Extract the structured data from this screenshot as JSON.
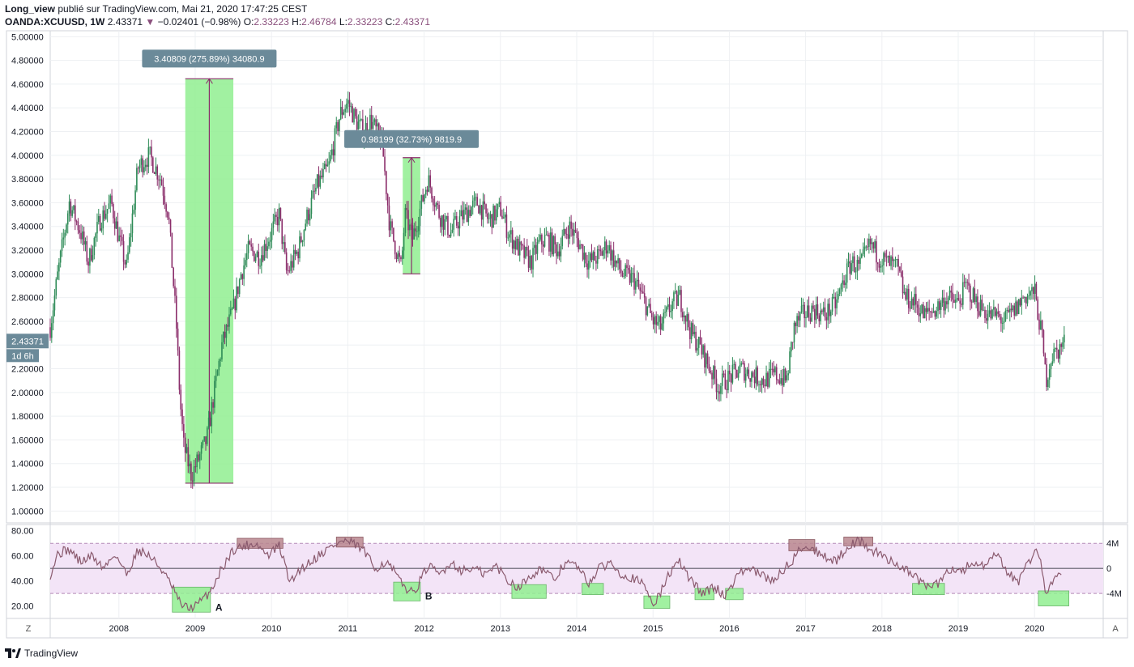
{
  "header": {
    "publisher": "Long_view",
    "published_text": "publié sur TradingView.com, Mai 21, 2020 17:47:25 CEST",
    "symbol": "OANDA:XCUUSD, 1W",
    "last": "2.43371",
    "change": "−0.02401 (−0.98%)",
    "o_label": "O:",
    "o": "2.33223",
    "h_label": "H:",
    "h": "2.46784",
    "l_label": "L:",
    "l": "2.33223",
    "c_label": "C:",
    "c": "2.43371"
  },
  "price_tag": {
    "price": "2.43371",
    "countdown": "1d 6h"
  },
  "measures": [
    {
      "label": "3.40809 (275.89%) 34080.9",
      "x0": 2008.87,
      "x1": 2009.5,
      "y0": 1.235,
      "y1": 4.645
    },
    {
      "label": "0.98199 (32.73%) 9819.9",
      "x0": 2011.72,
      "x1": 2011.95,
      "y0": 3.0,
      "y1": 3.98
    }
  ],
  "rsi_boxes": [
    {
      "x0": 2008.7,
      "x1": 2009.2,
      "y0": 15,
      "y1": 35,
      "color": "#90ee90",
      "label": "A"
    },
    {
      "x0": 2009.55,
      "x1": 2010.15,
      "y0": 66,
      "y1": 74,
      "color": "#b8868e",
      "label": ""
    },
    {
      "x0": 2010.85,
      "x1": 2011.2,
      "y0": 67,
      "y1": 75,
      "color": "#b8868e",
      "label": ""
    },
    {
      "x0": 2011.6,
      "x1": 2011.95,
      "y0": 24,
      "y1": 39,
      "color": "#90ee90",
      "label": "B"
    },
    {
      "x0": 2013.15,
      "x1": 2013.6,
      "y0": 26,
      "y1": 37,
      "color": "#90ee90",
      "label": ""
    },
    {
      "x0": 2014.07,
      "x1": 2014.35,
      "y0": 29,
      "y1": 38,
      "color": "#90ee90",
      "label": ""
    },
    {
      "x0": 2014.88,
      "x1": 2015.22,
      "y0": 18,
      "y1": 28,
      "color": "#90ee90",
      "label": ""
    },
    {
      "x0": 2015.55,
      "x1": 2015.8,
      "y0": 25,
      "y1": 34,
      "color": "#90ee90",
      "label": ""
    },
    {
      "x0": 2015.95,
      "x1": 2016.18,
      "y0": 25,
      "y1": 34,
      "color": "#90ee90",
      "label": ""
    },
    {
      "x0": 2016.78,
      "x1": 2017.12,
      "y0": 64,
      "y1": 73,
      "color": "#b8868e",
      "label": ""
    },
    {
      "x0": 2017.5,
      "x1": 2017.88,
      "y0": 68,
      "y1": 75,
      "color": "#b8868e",
      "label": ""
    },
    {
      "x0": 2018.4,
      "x1": 2018.82,
      "y0": 29,
      "y1": 38,
      "color": "#90ee90",
      "label": ""
    },
    {
      "x0": 2020.05,
      "x1": 2020.45,
      "y0": 20,
      "y1": 32,
      "color": "#90ee90",
      "label": ""
    }
  ],
  "chart_data": [
    {
      "type": "line",
      "title": "",
      "ylim": [
        0.9,
        5.05
      ],
      "xlim": [
        2007.1,
        2020.9
      ],
      "y_ticks": [
        "5.00000",
        "4.80000",
        "4.60000",
        "4.40000",
        "4.20000",
        "4.00000",
        "3.80000",
        "3.60000",
        "3.40000",
        "3.20000",
        "3.00000",
        "2.80000",
        "2.60000",
        "2.40000",
        "2.20000",
        "2.00000",
        "1.80000",
        "1.60000",
        "1.40000",
        "1.20000",
        "1.00000"
      ],
      "x_ticks": [
        "2008",
        "2009",
        "2010",
        "2011",
        "2012",
        "2013",
        "2014",
        "2015",
        "2016",
        "2017",
        "2018",
        "2019",
        "2020"
      ],
      "series": [
        {
          "x": [
            2007.1,
            2007.2,
            2007.35,
            2007.5,
            2007.6,
            2007.75,
            2007.9,
            2008.0,
            2008.1,
            2008.25,
            2008.4,
            2008.55,
            2008.65,
            2008.75,
            2008.8,
            2008.85,
            2008.95,
            2009.05,
            2009.15,
            2009.25,
            2009.35,
            2009.5,
            2009.6,
            2009.7,
            2009.85,
            2010.0,
            2010.1,
            2010.2,
            2010.35,
            2010.45,
            2010.6,
            2010.75,
            2010.9,
            2011.0,
            2011.1,
            2011.2,
            2011.3,
            2011.45,
            2011.55,
            2011.7,
            2011.75,
            2011.85,
            2011.95,
            2012.05,
            2012.2,
            2012.35,
            2012.45,
            2012.6,
            2012.7,
            2012.85,
            2013.0,
            2013.1,
            2013.25,
            2013.4,
            2013.5,
            2013.6,
            2013.75,
            2013.9,
            2014.0,
            2014.15,
            2014.3,
            2014.4,
            2014.5,
            2014.6,
            2014.75,
            2014.9,
            2015.0,
            2015.1,
            2015.25,
            2015.35,
            2015.5,
            2015.6,
            2015.75,
            2015.85,
            2015.95,
            2016.05,
            2016.15,
            2016.3,
            2016.45,
            2016.6,
            2016.75,
            2016.85,
            2016.95,
            2017.1,
            2017.25,
            2017.4,
            2017.5,
            2017.6,
            2017.7,
            2017.85,
            2017.95,
            2018.05,
            2018.2,
            2018.3,
            2018.45,
            2018.55,
            2018.7,
            2018.85,
            2019.0,
            2019.1,
            2019.25,
            2019.4,
            2019.5,
            2019.6,
            2019.75,
            2019.85,
            2020.0,
            2020.1,
            2020.15,
            2020.22,
            2020.3,
            2020.4
          ],
          "y": [
            2.55,
            3.0,
            3.6,
            3.35,
            3.1,
            3.45,
            3.6,
            3.3,
            3.05,
            3.9,
            4.0,
            3.8,
            3.5,
            2.6,
            1.95,
            1.55,
            1.3,
            1.45,
            1.6,
            2.0,
            2.4,
            2.7,
            3.0,
            3.2,
            3.15,
            3.35,
            3.5,
            3.0,
            3.2,
            3.45,
            3.75,
            3.9,
            4.35,
            4.45,
            4.3,
            4.2,
            4.3,
            4.1,
            3.4,
            3.05,
            3.5,
            3.3,
            3.55,
            3.8,
            3.5,
            3.35,
            3.45,
            3.55,
            3.6,
            3.45,
            3.55,
            3.35,
            3.2,
            3.1,
            3.25,
            3.3,
            3.2,
            3.4,
            3.3,
            3.1,
            3.15,
            3.25,
            3.1,
            3.0,
            2.95,
            2.75,
            2.6,
            2.55,
            2.75,
            2.8,
            2.5,
            2.4,
            2.2,
            2.05,
            2.1,
            2.15,
            2.2,
            2.15,
            2.1,
            2.15,
            2.1,
            2.55,
            2.65,
            2.7,
            2.65,
            2.75,
            2.95,
            3.1,
            3.05,
            3.25,
            3.15,
            3.1,
            3.05,
            2.8,
            2.75,
            2.65,
            2.7,
            2.8,
            2.75,
            2.9,
            2.75,
            2.65,
            2.65,
            2.6,
            2.7,
            2.8,
            2.85,
            2.45,
            2.1,
            2.3,
            2.35,
            2.43
          ]
        }
      ]
    },
    {
      "type": "line",
      "title": "",
      "ylim": [
        10,
        85
      ],
      "y_ticks": [
        "80.00",
        "60.00",
        "40.00",
        "20.00"
      ],
      "right_ticks": [
        "4M",
        "0",
        "-4M"
      ],
      "bands": [
        30,
        70
      ],
      "midline": 50,
      "series": [
        {
          "x": [
            2007.1,
            2007.2,
            2007.35,
            2007.5,
            2007.65,
            2007.8,
            2007.95,
            2008.1,
            2008.25,
            2008.4,
            2008.55,
            2008.7,
            2008.8,
            2008.9,
            2009.0,
            2009.1,
            2009.2,
            2009.35,
            2009.5,
            2009.65,
            2009.8,
            2009.95,
            2010.1,
            2010.25,
            2010.35,
            2010.5,
            2010.65,
            2010.8,
            2010.95,
            2011.05,
            2011.2,
            2011.35,
            2011.5,
            2011.6,
            2011.7,
            2011.85,
            2011.95,
            2012.05,
            2012.2,
            2012.35,
            2012.5,
            2012.65,
            2012.8,
            2012.95,
            2013.1,
            2013.25,
            2013.4,
            2013.55,
            2013.7,
            2013.85,
            2014.0,
            2014.15,
            2014.3,
            2014.45,
            2014.6,
            2014.75,
            2014.9,
            2015.0,
            2015.1,
            2015.2,
            2015.35,
            2015.5,
            2015.65,
            2015.8,
            2015.95,
            2016.1,
            2016.25,
            2016.4,
            2016.55,
            2016.7,
            2016.85,
            2016.95,
            2017.1,
            2017.25,
            2017.4,
            2017.55,
            2017.7,
            2017.85,
            2018.0,
            2018.15,
            2018.3,
            2018.45,
            2018.6,
            2018.75,
            2018.9,
            2019.05,
            2019.2,
            2019.35,
            2019.5,
            2019.65,
            2019.8,
            2019.95,
            2020.05,
            2020.15,
            2020.25,
            2020.35
          ],
          "y": [
            45,
            62,
            65,
            55,
            60,
            50,
            62,
            45,
            65,
            60,
            50,
            35,
            22,
            18,
            20,
            25,
            32,
            50,
            65,
            68,
            70,
            60,
            68,
            38,
            48,
            55,
            62,
            68,
            72,
            70,
            65,
            50,
            55,
            48,
            38,
            30,
            40,
            52,
            45,
            55,
            48,
            50,
            45,
            52,
            40,
            35,
            45,
            50,
            40,
            55,
            52,
            38,
            50,
            55,
            45,
            42,
            35,
            22,
            30,
            45,
            55,
            40,
            30,
            35,
            28,
            45,
            50,
            45,
            40,
            48,
            58,
            68,
            65,
            60,
            55,
            68,
            72,
            65,
            60,
            55,
            50,
            42,
            35,
            38,
            50,
            48,
            55,
            50,
            62,
            45,
            40,
            58,
            65,
            30,
            40,
            48
          ]
        }
      ]
    }
  ],
  "footer": {
    "brand": "TradingView"
  },
  "axis_corner": {
    "left": "Z",
    "right": "A"
  },
  "colors": {
    "candle_up": "#2e8b57",
    "candle_down": "#8b2e6b",
    "rsi_line": "#8a5a6e",
    "rsi_band": "#f3e4f7",
    "tag_bg": "#6b8a99",
    "green_box": "#90ee90"
  }
}
